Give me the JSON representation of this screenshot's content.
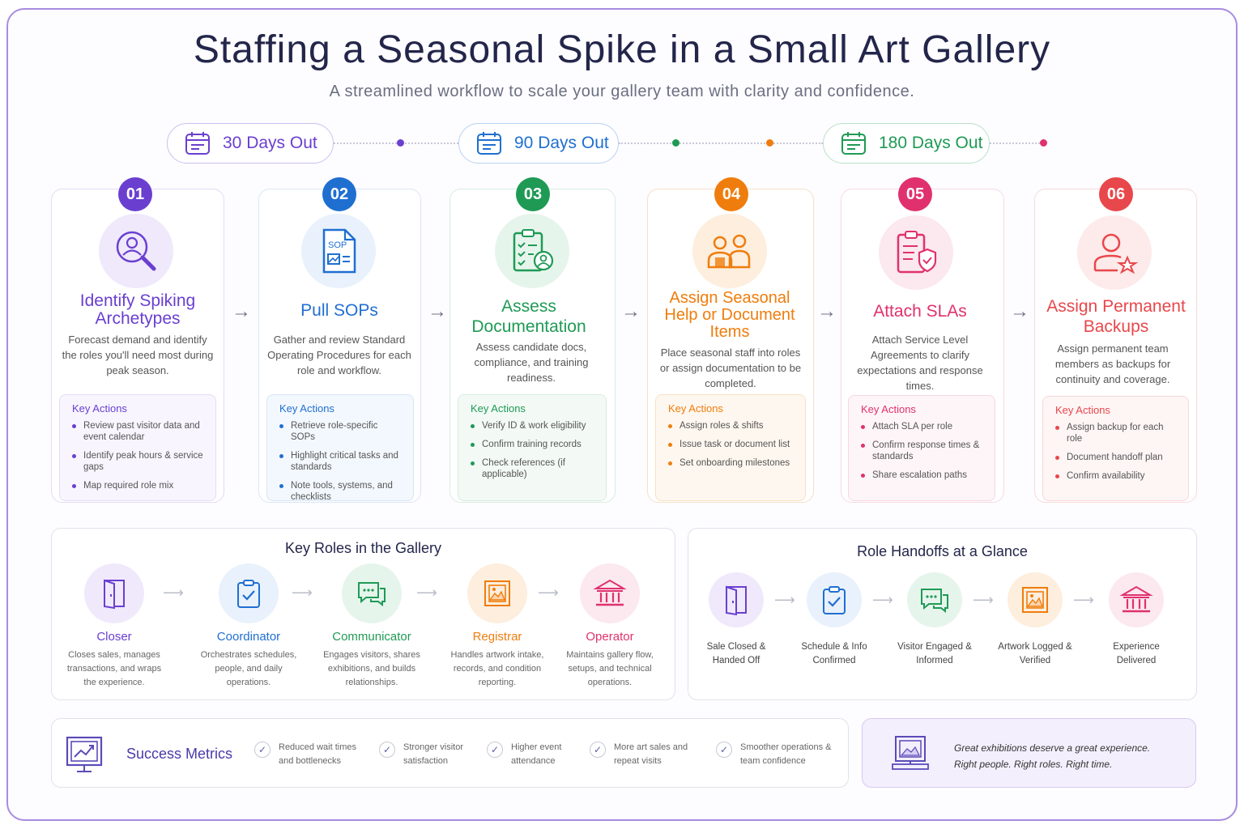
{
  "title": "Staffing a Seasonal Spike in a Small Art Gallery",
  "subtitle": "A streamlined workflow to scale your gallery team with clarity and confidence.",
  "phases": [
    {
      "label": "30 Days Out",
      "color": "#6a3fd0"
    },
    {
      "label": "90 Days Out",
      "color": "#1f6fd1"
    },
    {
      "label": "180 Days Out",
      "color": "#1f9a55"
    }
  ],
  "steps": [
    {
      "num": "01",
      "title": "Identify Spiking Archetypes",
      "desc": "Forecast demand and identify the roles you'll need most during peak season.",
      "actions_title": "Key Actions",
      "actions": [
        "Review past visitor data and event calendar",
        "Identify peak hours & service gaps",
        "Map required role mix"
      ],
      "color": "#6a3fd0",
      "icon": "search-person-icon"
    },
    {
      "num": "02",
      "title": "Pull SOPs",
      "desc": "Gather and review Standard Operating Procedures for each role and workflow.",
      "actions_title": "Key Actions",
      "actions": [
        "Retrieve role-specific SOPs",
        "Highlight critical tasks and standards",
        "Note tools, systems, and checklists"
      ],
      "color": "#1f6fd1",
      "icon": "sop-document-icon",
      "icon_text": "SOP"
    },
    {
      "num": "03",
      "title": "Assess Documentation",
      "desc": "Assess candidate docs, compliance, and training readiness.",
      "actions_title": "Key Actions",
      "actions": [
        "Verify ID & work eligibility",
        "Confirm training records",
        "Check references (if applicable)"
      ],
      "color": "#1f9a55",
      "icon": "checklist-person-icon"
    },
    {
      "num": "04",
      "title": "Assign Seasonal Help or Document Items",
      "desc": "Place seasonal staff into roles or assign documentation to be completed.",
      "actions_title": "Key Actions",
      "actions": [
        "Assign roles & shifts",
        "Issue task or document list",
        "Set onboarding milestones"
      ],
      "color": "#ef7d0d",
      "icon": "two-people-icon"
    },
    {
      "num": "05",
      "title": "Attach SLAs",
      "desc": "Attach Service Level Agreements to clarify expectations and response times.",
      "actions_title": "Key Actions",
      "actions": [
        "Attach SLA per role",
        "Confirm response times & standards",
        "Share escalation paths"
      ],
      "color": "#e0316e",
      "icon": "clipboard-shield-icon"
    },
    {
      "num": "06",
      "title": "Assign Permanent Backups",
      "desc": "Assign permanent team members as backups for continuity and coverage.",
      "actions_title": "Key Actions",
      "actions": [
        "Assign backup for each role",
        "Document handoff plan",
        "Confirm availability"
      ],
      "color": "#e8474b",
      "icon": "person-star-icon"
    }
  ],
  "roles_panel": {
    "title": "Key Roles in the Gallery",
    "roles": [
      {
        "name": "Closer",
        "desc": "Closes sales, manages transactions, and wraps the experience.",
        "color": "#6a3fd0",
        "icon": "door-icon"
      },
      {
        "name": "Coordinator",
        "desc": "Orchestrates schedules, people, and daily operations.",
        "color": "#1f6fd1",
        "icon": "clipboard-check-icon"
      },
      {
        "name": "Communicator",
        "desc": "Engages visitors, shares exhibitions, and builds relationships.",
        "color": "#1f9a55",
        "icon": "chat-bubbles-icon"
      },
      {
        "name": "Registrar",
        "desc": "Handles artwork intake, records, and condition reporting.",
        "color": "#ef7d0d",
        "icon": "framed-art-icon"
      },
      {
        "name": "Operator",
        "desc": "Maintains gallery flow, setups, and technical operations.",
        "color": "#e0316e",
        "icon": "museum-icon"
      }
    ]
  },
  "handoffs_panel": {
    "title": "Role Handoffs at a Glance",
    "items": [
      {
        "label": "Sale Closed & Handed Off",
        "color": "#6a3fd0",
        "icon": "door-icon"
      },
      {
        "label": "Schedule & Info Confirmed",
        "color": "#1f6fd1",
        "icon": "clipboard-check-icon"
      },
      {
        "label": "Visitor Engaged & Informed",
        "color": "#1f9a55",
        "icon": "chat-bubbles-icon"
      },
      {
        "label": "Artwork Logged & Verified",
        "color": "#ef7d0d",
        "icon": "framed-art-icon"
      },
      {
        "label": "Experience Delivered",
        "color": "#e0316e",
        "icon": "museum-icon"
      }
    ]
  },
  "metrics": {
    "title": "Success Metrics",
    "items": [
      "Reduced wait times and bottlenecks",
      "Stronger visitor satisfaction",
      "Higher event attendance",
      "More art sales and repeat visits",
      "Smoother operations & team confidence"
    ]
  },
  "quote": {
    "line1": "Great exhibitions deserve a great experience.",
    "line2": "Right people. Right roles. Right time."
  }
}
